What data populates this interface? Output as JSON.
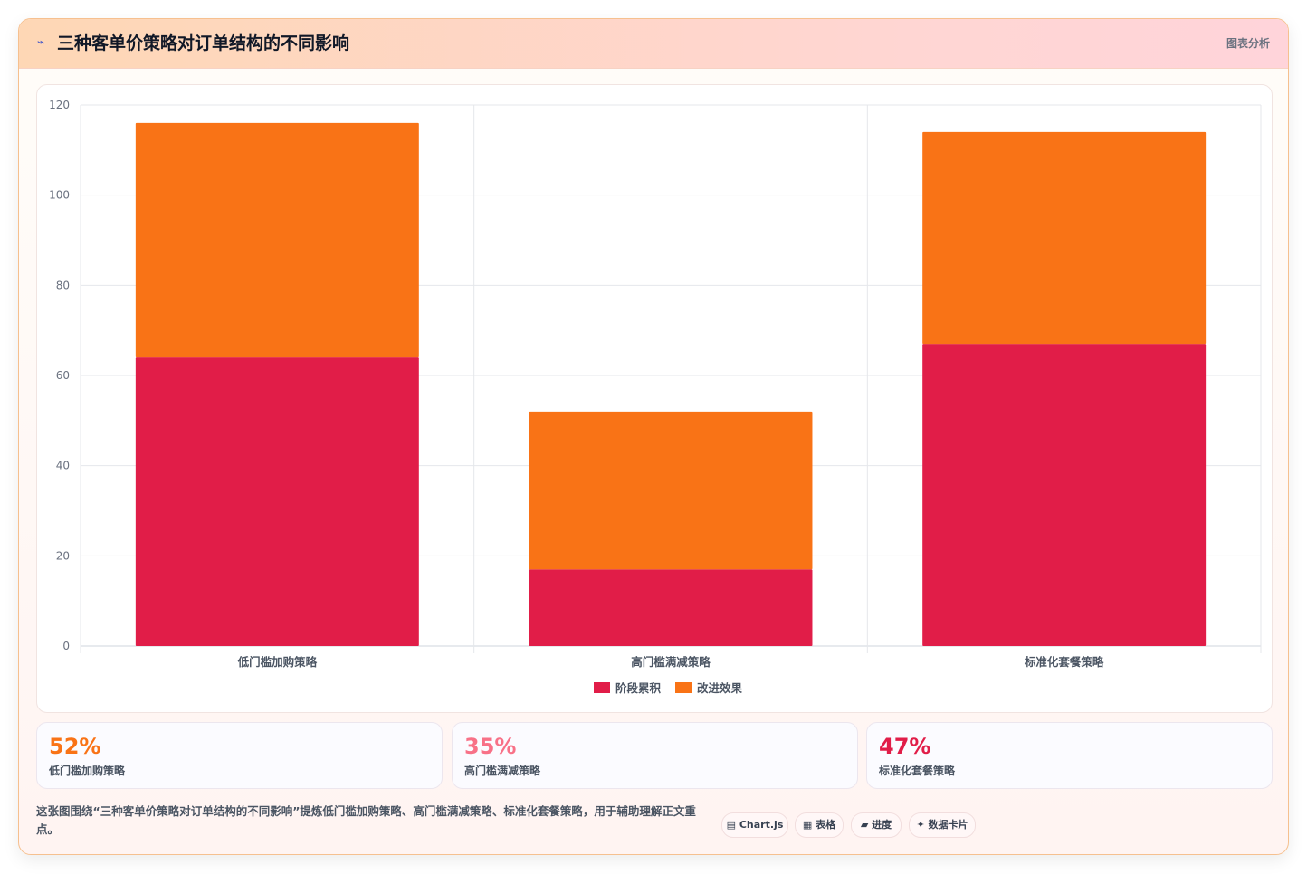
{
  "header": {
    "icon": "⌁",
    "title": "三种客单价策略对订单结构的不同影响",
    "link": "图表分析"
  },
  "chart_data": {
    "type": "bar",
    "stacked": true,
    "categories": [
      "低门槛加购策略",
      "高门槛满减策略",
      "标准化套餐策略"
    ],
    "series": [
      {
        "name": "阶段累积",
        "values": [
          64,
          17,
          67
        ],
        "color": "#e11d48"
      },
      {
        "name": "改进效果",
        "values": [
          52,
          35,
          47
        ],
        "color": "#f97316"
      }
    ],
    "ylim": [
      0,
      120
    ],
    "yticks": [
      0,
      20,
      40,
      60,
      80,
      100,
      120
    ],
    "grid": true,
    "legend": "bottom"
  },
  "stats": [
    {
      "value": "52%",
      "label": "低门槛加购策略",
      "color": "#f97316"
    },
    {
      "value": "35%",
      "label": "高门槛满减策略",
      "color": "#f87187"
    },
    {
      "value": "47%",
      "label": "标准化套餐策略",
      "color": "#e11d48"
    }
  ],
  "description": "这张图围绕“三种客单价策略对订单结构的不同影响”提炼低门槛加购策略、高门槛满减策略、标准化套餐策略，用于辅助理解正文重点。",
  "chips": [
    {
      "icon": "▤",
      "label": "Chart.js"
    },
    {
      "icon": "▦",
      "label": "表格"
    },
    {
      "icon": "▰",
      "label": "进度"
    },
    {
      "icon": "✦",
      "label": "数据卡片"
    }
  ]
}
